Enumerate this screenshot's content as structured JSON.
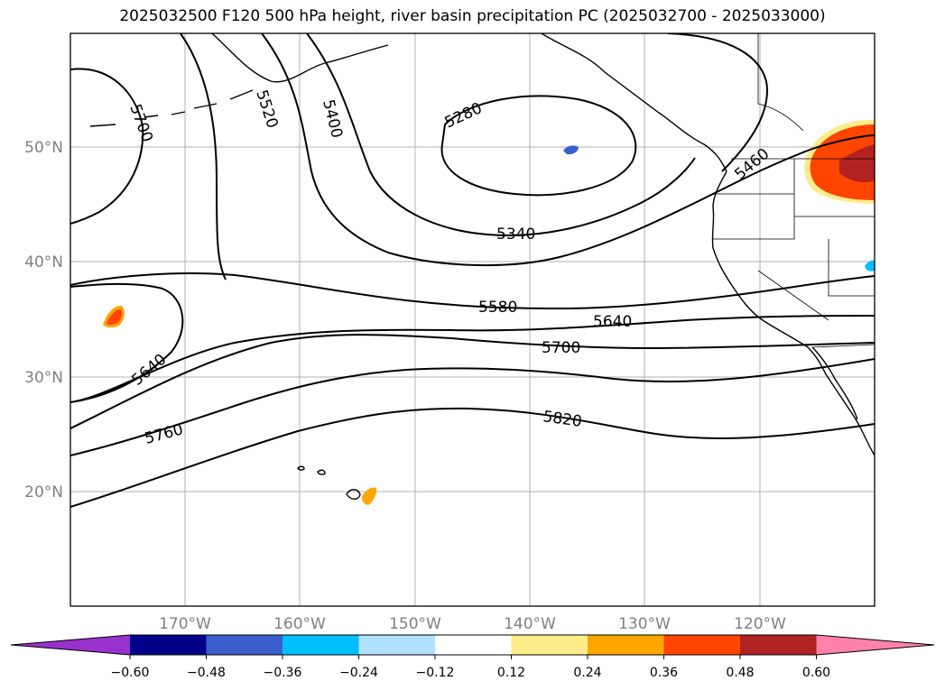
{
  "title": "2025032500 F120 500 hPa height, river basin precipitation PC (2025032700 - 2025033000)",
  "map": {
    "lat_labels": [
      "50°N",
      "40°N",
      "30°N",
      "20°N"
    ],
    "lon_labels": [
      "170°W",
      "160°W",
      "150°W",
      "140°W",
      "130°W",
      "120°W"
    ],
    "contour_labels": [
      "5700",
      "5520",
      "5400",
      "5280",
      "5340",
      "5460",
      "5580",
      "5640",
      "5640",
      "5700",
      "5760",
      "5820"
    ]
  },
  "colorbar": {
    "ticks": [
      "−0.60",
      "−0.48",
      "−0.36",
      "−0.24",
      "−0.12",
      "0.12",
      "0.24",
      "0.36",
      "0.48",
      "0.60"
    ],
    "colors": [
      "#9932cc",
      "#00008b",
      "#3a5fcd",
      "#00bfff",
      "#b0e2ff",
      "#ffffff",
      "#ffec8b",
      "#ffa500",
      "#ff4500",
      "#b22222",
      "#ff82ab"
    ]
  },
  "colors": {
    "grid": "#b0b0b0",
    "contour": "#000000",
    "coast": "#000000"
  }
}
